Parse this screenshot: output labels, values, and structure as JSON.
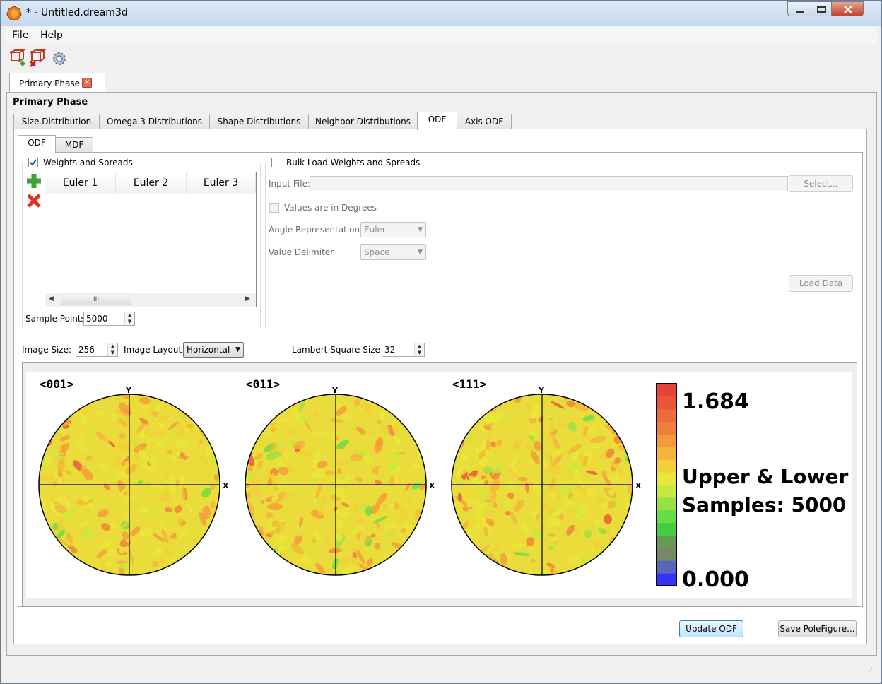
{
  "window": {
    "title": "* - Untitled.dream3d"
  },
  "menu": {
    "file": "File",
    "help": "Help"
  },
  "toolbar": {
    "icons": [
      "add-phase-icon",
      "remove-phase-icon",
      "settings-gear-icon"
    ]
  },
  "main_tab": {
    "label": "Primary Phase",
    "close_glyph": "×"
  },
  "phase_heading": "Primary Phase",
  "tabs": [
    {
      "label": "Size Distribution"
    },
    {
      "label": "Omega 3 Distributions"
    },
    {
      "label": "Shape Distributions"
    },
    {
      "label": "Neighbor Distributions"
    },
    {
      "label": "ODF",
      "selected": true
    },
    {
      "label": "Axis ODF"
    }
  ],
  "subtabs": [
    {
      "label": "ODF",
      "selected": true
    },
    {
      "label": "MDF"
    }
  ],
  "weights": {
    "checkbox_label": "Weights and Spreads",
    "checked": true,
    "columns": [
      "Euler 1",
      "Euler 2",
      "Euler 3"
    ],
    "scroll_thumb_glyph": "III",
    "sample_points_label": "Sample Points",
    "sample_points_value": "5000"
  },
  "bulk": {
    "checkbox_label": "Bulk Load Weights and Spreads",
    "checked": false,
    "input_file_label": "Input File:",
    "select_button": "Select...",
    "degrees_label": "Values are in Degrees",
    "angle_rep_label": "Angle Representation",
    "angle_rep_value": "Euler",
    "delimiter_label": "Value Delimiter",
    "delimiter_value": "Space",
    "load_button": "Load Data"
  },
  "image_controls": {
    "image_size_label": "Image Size:",
    "image_size_value": "256",
    "layout_label": "Image Layout",
    "layout_value": "Horizontal",
    "lambert_label": "Lambert Square Size",
    "lambert_value": "32"
  },
  "figures": {
    "pole_labels": [
      "<001>",
      "<011>",
      "<111>"
    ],
    "axis_x": "X",
    "axis_y": "Y",
    "scale_max": "1.684",
    "scale_min": "0.000",
    "legend_line1": "Upper & Lower",
    "legend_line2": "Samples: 5000",
    "scale_colors": [
      "#3333ff",
      "#5566bb",
      "#778866",
      "#669955",
      "#44cc44",
      "#66dd44",
      "#99e044",
      "#c8e93f",
      "#e8e83a",
      "#f3cf38",
      "#f4b33a",
      "#f49a3c",
      "#f07f3c",
      "#ec6a3c",
      "#e9553b",
      "#e4433a"
    ]
  },
  "buttons": {
    "update": "Update ODF",
    "save": "Save PoleFigure..."
  }
}
